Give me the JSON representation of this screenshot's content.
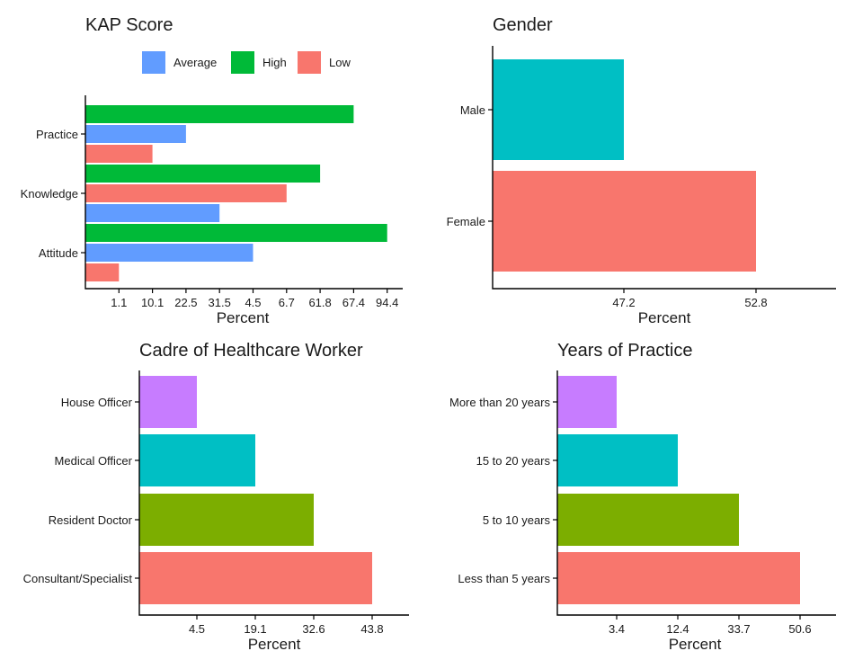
{
  "colors": {
    "average": "#619CFF",
    "high": "#00BA38",
    "low": "#F8766D",
    "cyan": "#00BFC4",
    "purple": "#C77CFF",
    "olive": "#7CAE00"
  },
  "chart_data": [
    {
      "id": "kap",
      "type": "bar",
      "orientation": "horizontal",
      "title": "KAP Score",
      "xlabel": "Percent",
      "categories": [
        "Practice",
        "Knowledge",
        "Attitude"
      ],
      "series": [
        {
          "name": "High",
          "color": "#00BA38",
          "values": [
            67.4,
            61.8,
            94.4
          ],
          "ticks": [
            "67.4",
            "61.8",
            "94.4"
          ]
        },
        {
          "name": "Average",
          "color": "#619CFF",
          "values": [
            22.5,
            31.5,
            4.5
          ],
          "ticks": [
            "22.5",
            "31.5",
            "4.5"
          ]
        },
        {
          "name": "Low",
          "color": "#F8766D",
          "values": [
            10.1,
            6.7,
            1.1
          ],
          "ticks": [
            "10.1",
            "6.7",
            "1.1"
          ]
        }
      ],
      "bars": [
        {
          "category": "Practice",
          "series": "High",
          "value": 67.4,
          "rank": 8
        },
        {
          "category": "Practice",
          "series": "Average",
          "value": 22.5,
          "rank": 3
        },
        {
          "category": "Practice",
          "series": "Low",
          "value": 10.1,
          "rank": 2
        },
        {
          "category": "Knowledge",
          "series": "High",
          "value": 61.8,
          "rank": 7
        },
        {
          "category": "Knowledge",
          "series": "Low",
          "value": 6.7,
          "rank": 6
        },
        {
          "category": "Knowledge",
          "series": "Average",
          "value": 31.5,
          "rank": 4
        },
        {
          "category": "Attitude",
          "series": "High",
          "value": 94.4,
          "rank": 9
        },
        {
          "category": "Attitude",
          "series": "Average",
          "value": 4.5,
          "rank": 5
        },
        {
          "category": "Attitude",
          "series": "Low",
          "value": 1.1,
          "rank": 1
        }
      ],
      "x_ticks": [
        "1.1",
        "10.1",
        "22.5",
        "31.5",
        "4.5",
        "6.7",
        "61.8",
        "67.4",
        "94.4"
      ],
      "legend": {
        "position": "top",
        "items": [
          "Average",
          "High",
          "Low"
        ]
      }
    },
    {
      "id": "gender",
      "type": "bar",
      "orientation": "horizontal",
      "title": "Gender",
      "xlabel": "Percent",
      "categories": [
        "Male",
        "Female"
      ],
      "values": [
        47.2,
        52.8
      ],
      "colors": [
        "#00BFC4",
        "#F8766D"
      ],
      "x_ticks": [
        "47.2",
        "52.8"
      ]
    },
    {
      "id": "cadre",
      "type": "bar",
      "orientation": "horizontal",
      "title": "Cadre of Healthcare Worker",
      "xlabel": "Percent",
      "categories": [
        "House Officer",
        "Medical Officer",
        "Resident Doctor",
        "Consultant/Specialist"
      ],
      "values": [
        4.5,
        19.1,
        32.6,
        43.8
      ],
      "colors": [
        "#C77CFF",
        "#00BFC4",
        "#7CAE00",
        "#F8766D"
      ],
      "x_ticks": [
        "4.5",
        "19.1",
        "32.6",
        "43.8"
      ]
    },
    {
      "id": "years",
      "type": "bar",
      "orientation": "horizontal",
      "title": "Years of Practice",
      "xlabel": "Percent",
      "categories": [
        "More than 20 years",
        "15 to 20 years",
        "5 to 10 years",
        "Less than 5 years"
      ],
      "values": [
        3.4,
        12.4,
        33.7,
        50.6
      ],
      "colors": [
        "#C77CFF",
        "#00BFC4",
        "#7CAE00",
        "#F8766D"
      ],
      "x_ticks": [
        "3.4",
        "12.4",
        "33.7",
        "50.6"
      ]
    }
  ]
}
